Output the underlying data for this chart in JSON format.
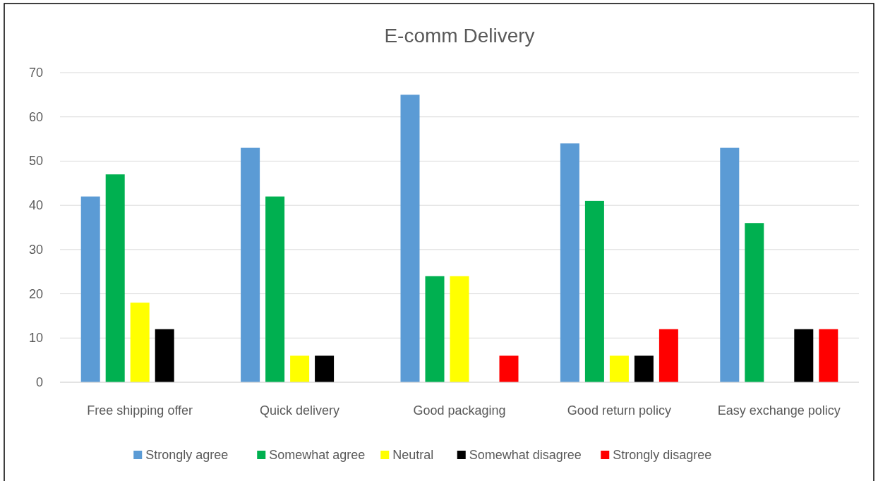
{
  "chart_data": {
    "type": "bar",
    "title": "E-comm Delivery",
    "categories": [
      "Free shipping offer",
      "Quick delivery",
      "Good packaging",
      "Good return policy",
      "Easy exchange policy"
    ],
    "series": [
      {
        "name": "Strongly agree",
        "color": "#5b9bd5",
        "values": [
          42,
          53,
          65,
          54,
          53
        ]
      },
      {
        "name": "Somewhat agree",
        "color": "#00b050",
        "values": [
          47,
          42,
          24,
          41,
          36
        ]
      },
      {
        "name": "Neutral",
        "color": "#ffff00",
        "values": [
          18,
          6,
          24,
          6,
          0
        ]
      },
      {
        "name": "Somewhat disagree",
        "color": "#000000",
        "values": [
          12,
          6,
          0,
          6,
          12
        ]
      },
      {
        "name": "Strongly disagree",
        "color": "#ff0000",
        "values": [
          0,
          0,
          6,
          12,
          12
        ]
      }
    ],
    "ylim": [
      0,
      70
    ],
    "yticks": [
      0,
      10,
      20,
      30,
      40,
      50,
      60,
      70
    ],
    "grid": "y",
    "legend": "bottom"
  }
}
